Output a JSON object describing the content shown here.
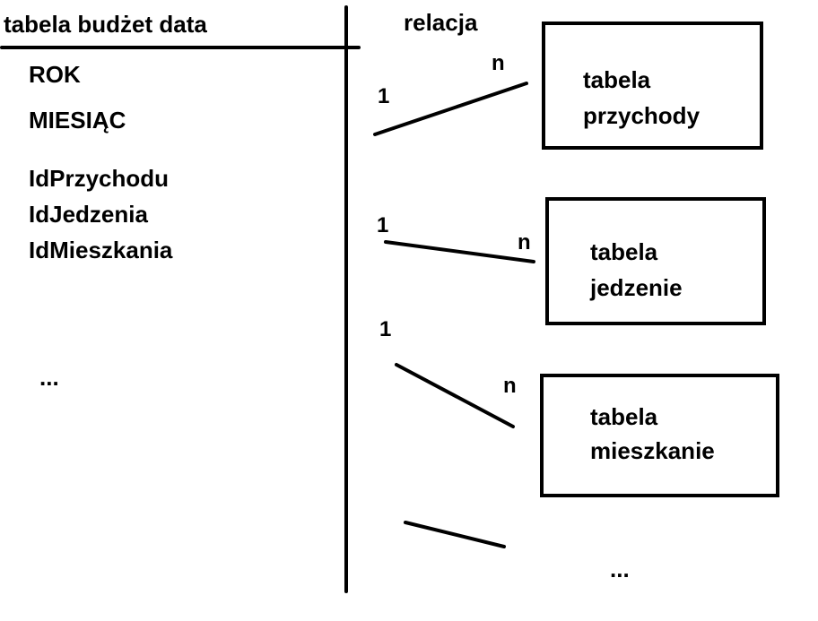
{
  "left_table": {
    "title": "tabela budżet data",
    "fields": [
      "ROK",
      "MIESIĄC",
      "IdPrzychodu",
      "IdJedzenia",
      "IdMieszkania"
    ],
    "ellipsis": "..."
  },
  "relation_header": "relacja",
  "relations": [
    {
      "one": "1",
      "many": "n",
      "line1": "tabela",
      "line2": "przychody"
    },
    {
      "one": "1",
      "many": "n",
      "line1": "tabela",
      "line2": "jedzenie"
    },
    {
      "one": "1",
      "many": "n",
      "line1": "tabela",
      "line2": "mieszkanie"
    }
  ],
  "more_relations": "..."
}
